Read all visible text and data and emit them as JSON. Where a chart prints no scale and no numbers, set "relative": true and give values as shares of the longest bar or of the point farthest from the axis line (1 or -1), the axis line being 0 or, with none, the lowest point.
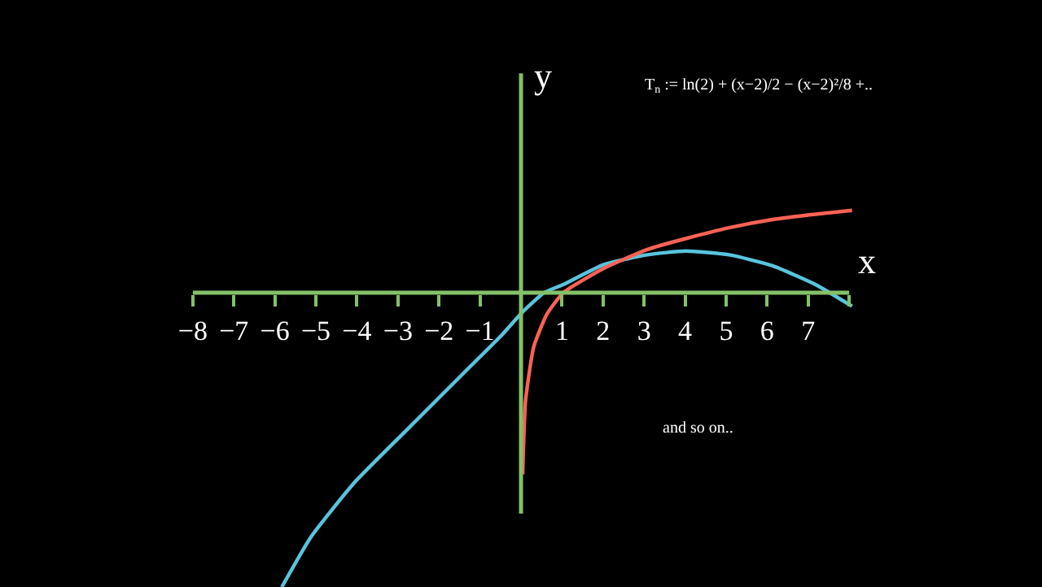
{
  "chart_data": {
    "type": "line",
    "relative": true,
    "title": "T$_{n}$ := ln(2) + (x−2)/2 − (x−2)²/8 +..",
    "xlabel": "x",
    "ylabel": "y",
    "annotations": [
      "and so on.."
    ],
    "xlim": [
      -12.7,
      12.7
    ],
    "xticks": [
      -8,
      -7,
      -6,
      -5,
      -4,
      -3,
      -2,
      -1,
      {
        "value": 0,
        "label": null
      },
      1,
      2,
      3,
      4,
      5,
      6,
      7,
      {
        "value": 8,
        "label": null
      }
    ],
    "ref_lines": [
      {
        "axis": "x",
        "value": 0,
        "color": "#83c167"
      }
    ],
    "tick_labels": "x",
    "grid": false,
    "marker": "none",
    "line_style": "solid",
    "series": [
      {
        "color": "#58c4dd",
        "x": [
          -5.83,
          -5.12,
          -4.06,
          -2.74,
          -1.42,
          -0.49,
          0.04,
          0.56,
          1.03,
          2.02,
          3.08,
          4.01,
          5.07,
          6.13,
          7.18,
          8.07
        ],
        "values": [
          -1.0,
          -0.83,
          -0.645,
          -0.46,
          -0.276,
          -0.147,
          -0.065,
          0,
          0.028,
          0.096,
          0.129,
          0.142,
          0.129,
          0.092,
          0.028,
          -0.046
        ]
      },
      {
        "color": "#fc6255",
        "x": [
          0.04,
          0.11,
          0.31,
          0.63,
          1.03,
          2.02,
          3.08,
          4.01,
          5.07,
          6.13,
          7.18,
          8.07
        ],
        "values": [
          -0.617,
          -0.368,
          -0.184,
          -0.073,
          0,
          0.083,
          0.147,
          0.184,
          0.221,
          0.249,
          0.267,
          0.28
        ]
      }
    ]
  }
}
